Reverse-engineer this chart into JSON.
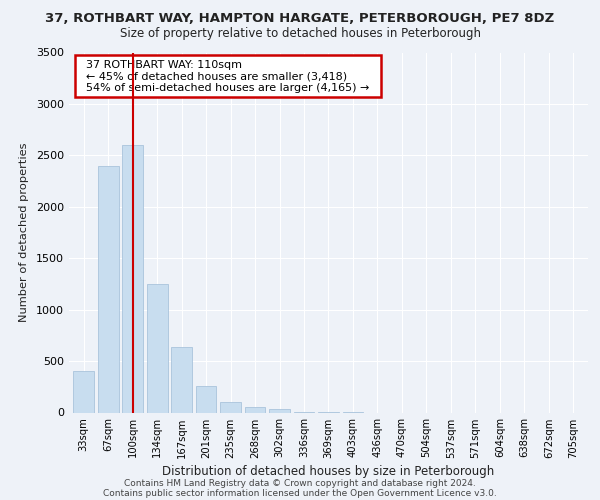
{
  "title": "37, ROTHBART WAY, HAMPTON HARGATE, PETERBOROUGH, PE7 8DZ",
  "subtitle": "Size of property relative to detached houses in Peterborough",
  "xlabel": "Distribution of detached houses by size in Peterborough",
  "ylabel": "Number of detached properties",
  "bar_color": "#c8ddef",
  "bar_edge_color": "#aac4dc",
  "categories": [
    "33sqm",
    "67sqm",
    "100sqm",
    "134sqm",
    "167sqm",
    "201sqm",
    "235sqm",
    "268sqm",
    "302sqm",
    "336sqm",
    "369sqm",
    "403sqm",
    "436sqm",
    "470sqm",
    "504sqm",
    "537sqm",
    "571sqm",
    "604sqm",
    "638sqm",
    "672sqm",
    "705sqm"
  ],
  "values": [
    400,
    2400,
    2600,
    1250,
    640,
    260,
    100,
    50,
    30,
    5,
    5,
    5,
    0,
    0,
    0,
    0,
    0,
    0,
    0,
    0,
    0
  ],
  "ylim": [
    0,
    3500
  ],
  "yticks": [
    0,
    500,
    1000,
    1500,
    2000,
    2500,
    3000,
    3500
  ],
  "vline_x": 2.0,
  "vline_color": "#cc0000",
  "annotation_title": "37 ROTHBART WAY: 110sqm",
  "annotation_line1": "← 45% of detached houses are smaller (3,418)",
  "annotation_line2": "54% of semi-detached houses are larger (4,165) →",
  "annotation_box_color": "#ffffff",
  "annotation_box_edge": "#cc0000",
  "footer1": "Contains HM Land Registry data © Crown copyright and database right 2024.",
  "footer2": "Contains public sector information licensed under the Open Government Licence v3.0.",
  "background_color": "#eef2f8",
  "grid_color": "#ffffff",
  "title_fontsize": 9.5,
  "subtitle_fontsize": 8.5,
  "footer_fontsize": 6.5
}
